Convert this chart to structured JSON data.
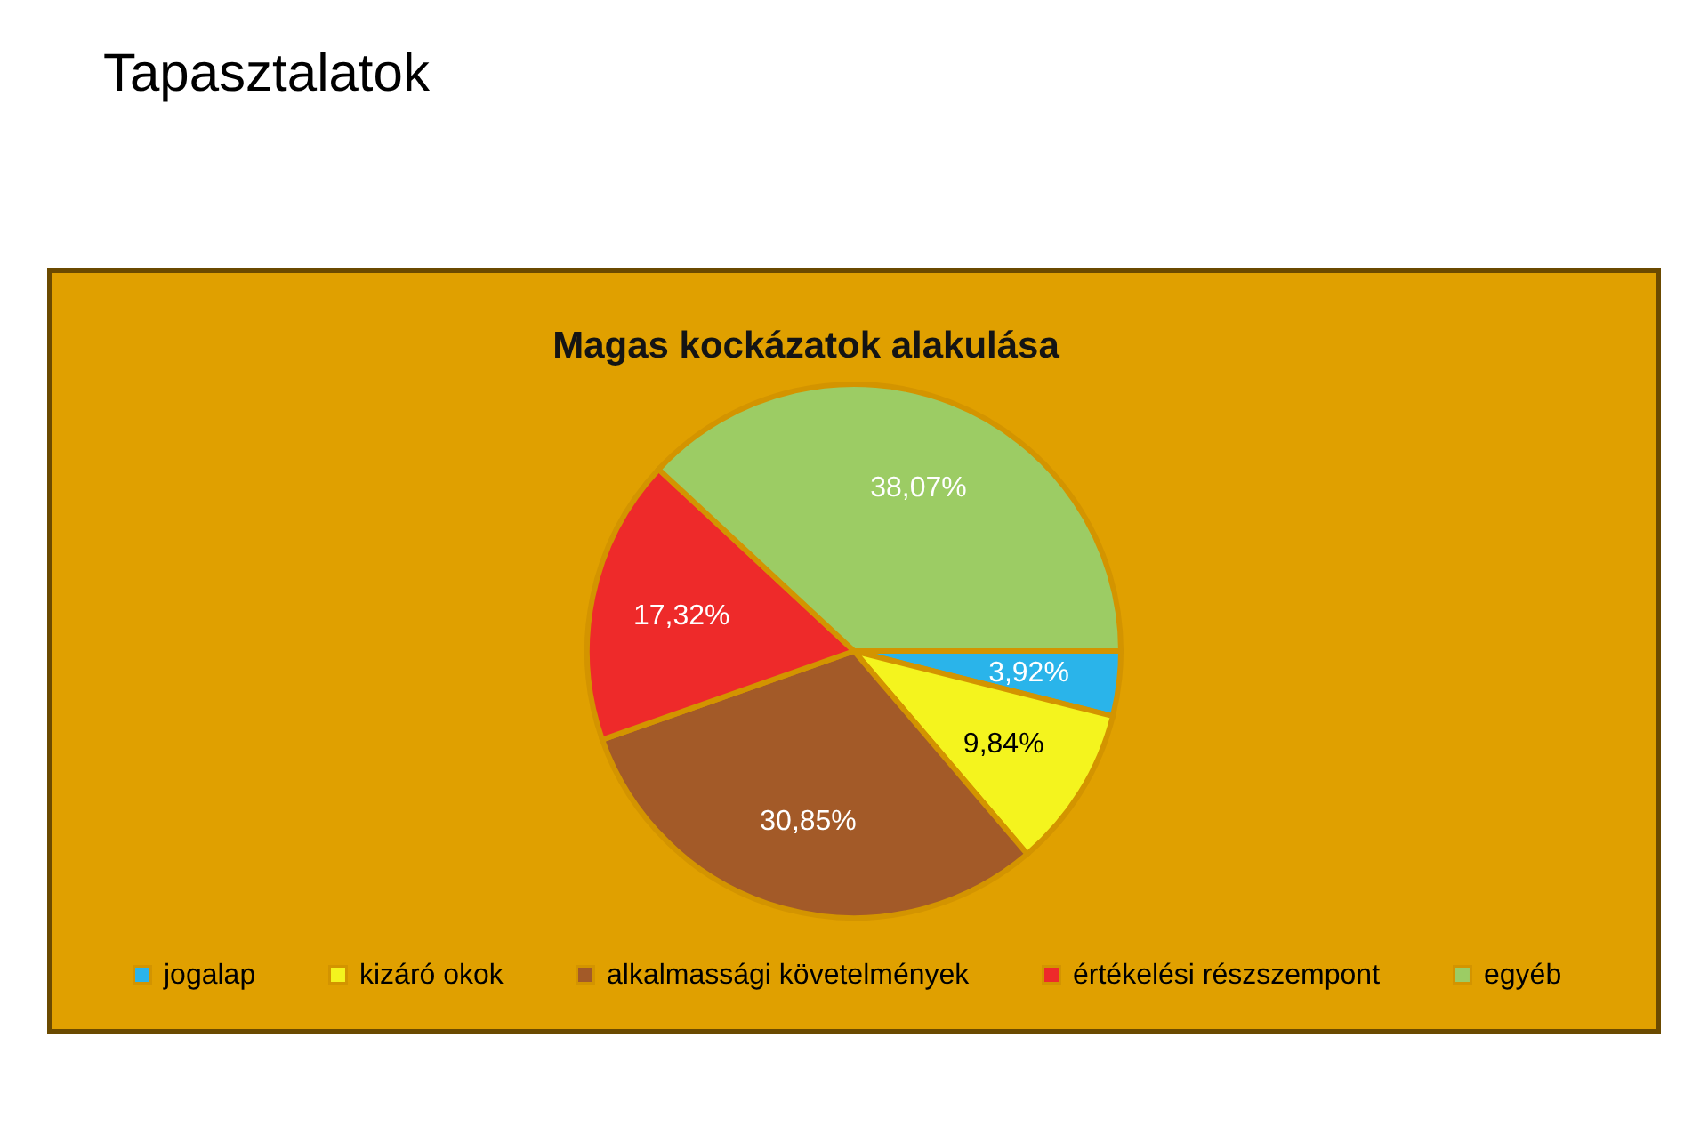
{
  "chart_data": {
    "type": "pie",
    "title": "Magas kockázatok alakulása",
    "annotations": [
      "Tapasztalatok"
    ],
    "categories": [
      "jogalap",
      "kizáró okok",
      "alkalmassági követelmények",
      "értékelési részszempont",
      "egyéb"
    ],
    "values": [
      3.92,
      9.84,
      30.85,
      17.32,
      38.07
    ],
    "colors": [
      "#2ab4ea",
      "#f4f41e",
      "#a35a28",
      "#ee2a2a",
      "#9ccc64"
    ],
    "value_labels": [
      "3,92%",
      "9,84%",
      "30,85%",
      "17,32%",
      "38,07%"
    ],
    "legend": "bottom"
  }
}
